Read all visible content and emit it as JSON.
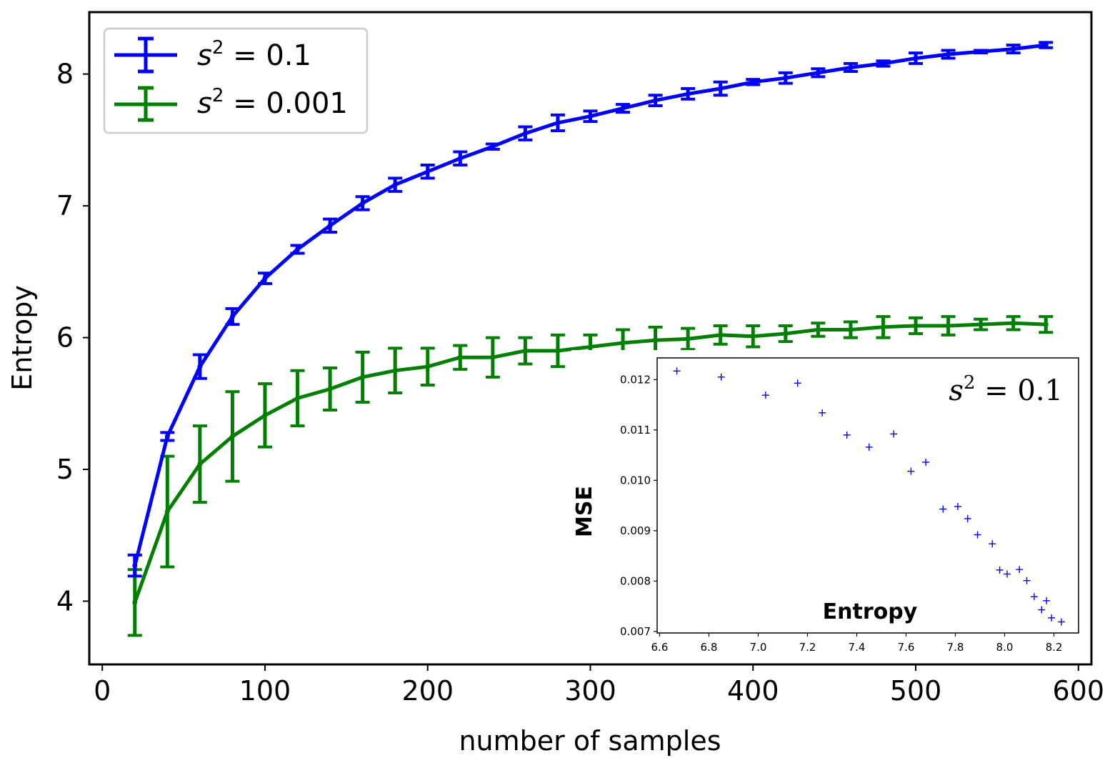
{
  "chart_data": [
    {
      "type": "line",
      "xlabel": "number of samples",
      "ylabel": "Entropy",
      "xlim": [
        -8,
        608
      ],
      "ylim": [
        3.52,
        8.47
      ],
      "xticks": [
        0,
        100,
        200,
        300,
        400,
        500,
        600
      ],
      "yticks": [
        4,
        5,
        6,
        7,
        8
      ],
      "grid": false,
      "legend_position": "top-left",
      "x": [
        20,
        40,
        60,
        80,
        100,
        120,
        140,
        160,
        180,
        200,
        220,
        240,
        260,
        280,
        300,
        320,
        340,
        360,
        380,
        400,
        420,
        440,
        460,
        480,
        500,
        520,
        540,
        560,
        580
      ],
      "series": [
        {
          "name": "s2 = 0.1",
          "legend_base": "s",
          "legend_sup": "2",
          "legend_rest": " = 0.1",
          "color": "#0000ff",
          "values": [
            4.27,
            5.25,
            5.78,
            6.16,
            6.45,
            6.67,
            6.85,
            7.02,
            7.16,
            7.26,
            7.36,
            7.45,
            7.55,
            7.63,
            7.68,
            7.74,
            7.8,
            7.85,
            7.89,
            7.94,
            7.97,
            8.01,
            8.05,
            8.08,
            8.12,
            8.15,
            8.17,
            8.19,
            8.22
          ],
          "errors": [
            0.08,
            0.03,
            0.09,
            0.06,
            0.04,
            0.03,
            0.05,
            0.05,
            0.05,
            0.05,
            0.05,
            0.02,
            0.05,
            0.06,
            0.04,
            0.03,
            0.04,
            0.04,
            0.05,
            0.02,
            0.04,
            0.03,
            0.03,
            0.02,
            0.04,
            0.03,
            0.01,
            0.03,
            0.02
          ]
        },
        {
          "name": "s2 = 0.001",
          "legend_base": "s",
          "legend_sup": "2",
          "legend_rest": " = 0.001",
          "color": "#007f00",
          "values": [
            3.99,
            4.68,
            5.04,
            5.25,
            5.41,
            5.54,
            5.61,
            5.7,
            5.75,
            5.78,
            5.85,
            5.85,
            5.9,
            5.9,
            5.93,
            5.96,
            5.98,
            5.99,
            6.02,
            6.01,
            6.03,
            6.06,
            6.06,
            6.08,
            6.09,
            6.09,
            6.1,
            6.11,
            6.1
          ],
          "errors": [
            0.25,
            0.42,
            0.29,
            0.34,
            0.24,
            0.21,
            0.16,
            0.19,
            0.17,
            0.14,
            0.09,
            0.15,
            0.1,
            0.12,
            0.09,
            0.1,
            0.1,
            0.08,
            0.07,
            0.08,
            0.06,
            0.05,
            0.06,
            0.08,
            0.06,
            0.07,
            0.04,
            0.05,
            0.06
          ]
        }
      ]
    },
    {
      "type": "scatter",
      "xlabel": "Entropy",
      "ylabel": "MSE",
      "xlim": [
        6.59,
        8.3
      ],
      "ylim": [
        0.00697,
        0.01243
      ],
      "xticks": [
        "6.6",
        "6.8",
        "7.0",
        "7.2",
        "7.4",
        "7.6",
        "7.8",
        "8.0",
        "8.2"
      ],
      "yticks": [
        "0.007",
        "0.008",
        "0.009",
        "0.010",
        "0.011",
        "0.012"
      ],
      "annotation_base": "s",
      "annotation_sup": "2",
      "annotation_rest": " = 0.1",
      "color": "#0000ff",
      "marker": "+",
      "x": [
        6.67,
        6.85,
        7.03,
        7.16,
        7.26,
        7.36,
        7.45,
        7.55,
        7.62,
        7.68,
        7.75,
        7.81,
        7.85,
        7.89,
        7.95,
        7.98,
        8.01,
        8.06,
        8.09,
        8.12,
        8.15,
        8.17,
        8.19,
        8.23
      ],
      "y": [
        0.01217,
        0.01205,
        0.01169,
        0.01193,
        0.01134,
        0.0109,
        0.01066,
        0.01092,
        0.01018,
        0.01036,
        0.00943,
        0.00948,
        0.00924,
        0.00892,
        0.00874,
        0.00822,
        0.00814,
        0.00823,
        0.00801,
        0.00769,
        0.00743,
        0.00761,
        0.00727,
        0.00719
      ]
    }
  ]
}
